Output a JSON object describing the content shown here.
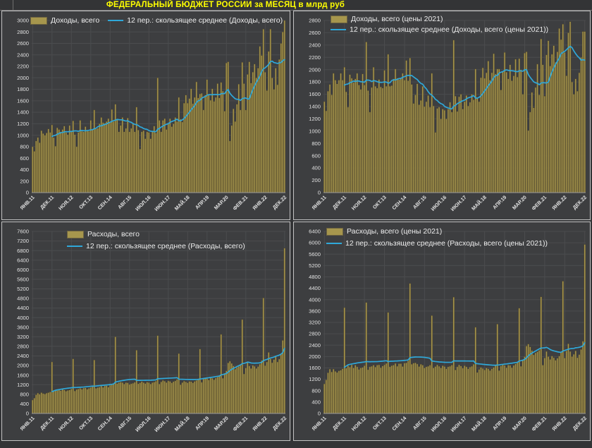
{
  "title": "ФЕДЕРАЛЬНЫЙ БЮДЖЕТ РОССИИ за МЕСЯЦ в млрд руб",
  "unit": "млрд руб",
  "colors": {
    "page_background": "#333436",
    "plot_background": "#3d3e40",
    "grid": "#4b4c4e",
    "bar": "#a6964d",
    "bar_edge": "#554a2a",
    "line": "#2fa8d9",
    "title_color": "#ffff00",
    "axis_text": "#e2e2e2",
    "chart_border": "#c4c4c4"
  },
  "x_ticks": {
    "labels": [
      "ЯНВ.11",
      "ДЕК.11",
      "НОЯ.12",
      "ОКТ.13",
      "СЕН.14",
      "АВГ.15",
      "ИЮЛ.16",
      "ИЮН.17",
      "МАЙ.18",
      "АПР.19",
      "МАР.20",
      "ФЕВ.21",
      "ЯНВ.22",
      "ДЕК.22"
    ],
    "indices": [
      0,
      11,
      22,
      33,
      44,
      55,
      66,
      77,
      88,
      99,
      110,
      121,
      132,
      143
    ]
  },
  "chart_data": [
    {
      "type": "bar+line",
      "legend": [
        "Доходы, всего",
        "12 пер.: скользящее среднее (Доходы, всего)"
      ],
      "x": {
        "start": "ЯНВ.11",
        "end": "ДЕК.22",
        "n": 144,
        "frequency": "monthly"
      },
      "ylim": [
        0,
        3000
      ],
      "ytick": 200,
      "grid": true,
      "legend_position": "top-left",
      "line_definition": "12-period trailing moving average of values",
      "values": [
        800,
        720,
        900,
        960,
        870,
        1080,
        1030,
        1000,
        1040,
        1110,
        1050,
        1180,
        960,
        810,
        1130,
        1100,
        1060,
        1100,
        1160,
        1050,
        1010,
        1170,
        1060,
        1250,
        1010,
        800,
        1050,
        1260,
        1070,
        1060,
        1150,
        1080,
        1070,
        1260,
        1100,
        1440,
        1110,
        1120,
        1200,
        1310,
        1220,
        1210,
        1240,
        1290,
        1220,
        1450,
        1240,
        1540,
        1270,
        1060,
        1170,
        1310,
        1060,
        1120,
        1300,
        1060,
        1120,
        1200,
        1060,
        1490,
        1090,
        760,
        1060,
        1080,
        940,
        1060,
        1050,
        940,
        1070,
        1160,
        1040,
        2000,
        1260,
        1060,
        1260,
        1290,
        1100,
        1200,
        1290,
        1150,
        1200,
        1310,
        1240,
        1660,
        1280,
        1230,
        1560,
        1700,
        1560,
        1640,
        1810,
        1550,
        1660,
        1930,
        1650,
        1720,
        1730,
        1440,
        1700,
        1970,
        1700,
        1610,
        1810,
        1590,
        1660,
        1900,
        1650,
        1920,
        1770,
        1420,
        2260,
        2280,
        900,
        1170,
        1460,
        1240,
        1540,
        1890,
        1440,
        2270,
        1900,
        1440,
        2060,
        2280,
        1910,
        2100,
        2240,
        2000,
        2170,
        2550,
        2390,
        2850,
        2100,
        1780,
        2460,
        2850,
        2000,
        1800,
        2170,
        1880,
        2320,
        2600,
        2800,
        3050
      ]
    },
    {
      "type": "bar+line",
      "legend": [
        "Доходы, всего (цены 2021)",
        "12 пер.: скользящее среднее (Доходы, всего (цены 2021))"
      ],
      "x": {
        "start": "ЯНВ.11",
        "end": "ДЕК.22",
        "n": 144,
        "frequency": "monthly"
      },
      "ylim": [
        0,
        2800
      ],
      "ytick": 200,
      "grid": true,
      "legend_position": "top-left",
      "line_definition": "12-period trailing moving average of values",
      "values": [
        1480,
        1330,
        1650,
        1760,
        1590,
        1940,
        1830,
        1770,
        1830,
        1940,
        1830,
        2040,
        1640,
        1390,
        1920,
        1860,
        1790,
        1850,
        1940,
        1750,
        1680,
        1930,
        1750,
        2450,
        1660,
        1310,
        1710,
        2040,
        1730,
        1700,
        1840,
        1720,
        1700,
        1990,
        1730,
        2250,
        1730,
        1740,
        1850,
        2010,
        1860,
        1840,
        1870,
        1940,
        1830,
        2150,
        1820,
        2190,
        1760,
        1450,
        1590,
        1770,
        1430,
        1500,
        1730,
        1400,
        1480,
        1580,
        1390,
        1940,
        1410,
        980,
        1370,
        1390,
        1200,
        1360,
        1340,
        1200,
        1360,
        1470,
        1310,
        2480,
        1570,
        1320,
        1560,
        1600,
        1360,
        1480,
        1580,
        1410,
        1470,
        1600,
        1510,
        2010,
        1540,
        1480,
        1870,
        2030,
        1860,
        1950,
        2140,
        1830,
        1950,
        2260,
        1930,
        2010,
        2010,
        1670,
        1970,
        2280,
        1960,
        1850,
        2080,
        1820,
        1900,
        2170,
        1880,
        2180,
        2000,
        1600,
        2270,
        2290,
        1010,
        1310,
        1630,
        1380,
        1710,
        2090,
        1590,
        2500,
        2080,
        1570,
        2240,
        2470,
        2060,
        2250,
        2390,
        2120,
        2290,
        2670,
        2490,
        2740,
        2280,
        1900,
        2600,
        2780,
        1800,
        1600,
        1850,
        1650,
        1950,
        2200,
        2620,
        2620
      ]
    },
    {
      "type": "bar+line",
      "legend": [
        "Расходы, всего",
        "12 пер.: скользящее среднее (Расходы, всего)"
      ],
      "x": {
        "start": "ЯНВ.11",
        "end": "ДЕК.22",
        "n": 144,
        "frequency": "monthly"
      },
      "ylim": [
        0,
        7600
      ],
      "ytick": 400,
      "grid": true,
      "legend_position": "top-left",
      "line_definition": "12-period trailing moving average of values",
      "values": [
        560,
        640,
        780,
        850,
        800,
        870,
        830,
        810,
        850,
        870,
        900,
        2150,
        930,
        980,
        960,
        1010,
        950,
        1010,
        980,
        930,
        960,
        980,
        1020,
        2280,
        940,
        1000,
        1020,
        1050,
        1010,
        1060,
        1070,
        1010,
        1050,
        1080,
        1120,
        2230,
        1050,
        1080,
        1100,
        1150,
        1090,
        1150,
        1160,
        1100,
        1180,
        1200,
        1260,
        3200,
        1250,
        1290,
        1310,
        1290,
        1230,
        1290,
        1280,
        1210,
        1240,
        1260,
        1300,
        2640,
        1240,
        1280,
        1330,
        1290,
        1250,
        1310,
        1290,
        1230,
        1290,
        1310,
        1350,
        3250,
        1230,
        1320,
        1380,
        1350,
        1290,
        1360,
        1340,
        1280,
        1330,
        1360,
        1420,
        2500,
        1200,
        1290,
        1350,
        1320,
        1280,
        1340,
        1330,
        1280,
        1340,
        1380,
        1450,
        2690,
        1300,
        1440,
        1480,
        1460,
        1400,
        1480,
        1470,
        1410,
        1480,
        1520,
        1590,
        3300,
        1470,
        1680,
        1780,
        2110,
        2180,
        2090,
        1980,
        1850,
        1920,
        1960,
        2010,
        3920,
        1650,
        1900,
        2140,
        1980,
        1880,
        2010,
        1970,
        1880,
        1960,
        2060,
        2210,
        4820,
        2000,
        2150,
        2550,
        2280,
        2120,
        2250,
        2380,
        2150,
        2270,
        2500,
        3050,
        6900
      ]
    },
    {
      "type": "bar+line",
      "legend": [
        "Расходы, всего (цены 2021)",
        "12 пер.: скользящее среднее (Расходы, всего (цены 2021))"
      ],
      "x": {
        "start": "ЯНВ.11",
        "end": "ДЕК.22",
        "n": 144,
        "frequency": "monthly"
      },
      "ylim": [
        0,
        6400
      ],
      "ytick": 400,
      "grid": true,
      "legend_position": "top-left",
      "line_definition": "12-period trailing moving average of values",
      "values": [
        1040,
        1180,
        1430,
        1560,
        1460,
        1560,
        1480,
        1440,
        1500,
        1520,
        1570,
        3720,
        1590,
        1680,
        1630,
        1710,
        1600,
        1700,
        1640,
        1550,
        1600,
        1620,
        1680,
        3900,
        1540,
        1640,
        1660,
        1700,
        1630,
        1700,
        1710,
        1610,
        1670,
        1710,
        1760,
        3550,
        1640,
        1680,
        1700,
        1760,
        1660,
        1750,
        1750,
        1650,
        1770,
        1780,
        1850,
        4570,
        1730,
        1770,
        1780,
        1740,
        1650,
        1730,
        1700,
        1600,
        1640,
        1660,
        1700,
        3440,
        1600,
        1650,
        1710,
        1660,
        1600,
        1680,
        1650,
        1570,
        1640,
        1660,
        1700,
        4090,
        1530,
        1640,
        1710,
        1670,
        1590,
        1680,
        1640,
        1570,
        1630,
        1660,
        1730,
        3030,
        1440,
        1550,
        1620,
        1580,
        1530,
        1600,
        1570,
        1510,
        1570,
        1620,
        1690,
        3140,
        1510,
        1670,
        1710,
        1690,
        1610,
        1700,
        1690,
        1610,
        1690,
        1740,
        1810,
        3700,
        1660,
        1890,
        2000,
        2370,
        2440,
        2340,
        2210,
        2060,
        2130,
        2170,
        2220,
        4100,
        1700,
        1950,
        2180,
        2000,
        1900,
        2020,
        1960,
        1870,
        1940,
        2020,
        2150,
        4650,
        1950,
        2200,
        2450,
        2180,
        2000,
        2080,
        2200,
        1960,
        2070,
        2250,
        2540,
        5940
      ]
    }
  ]
}
